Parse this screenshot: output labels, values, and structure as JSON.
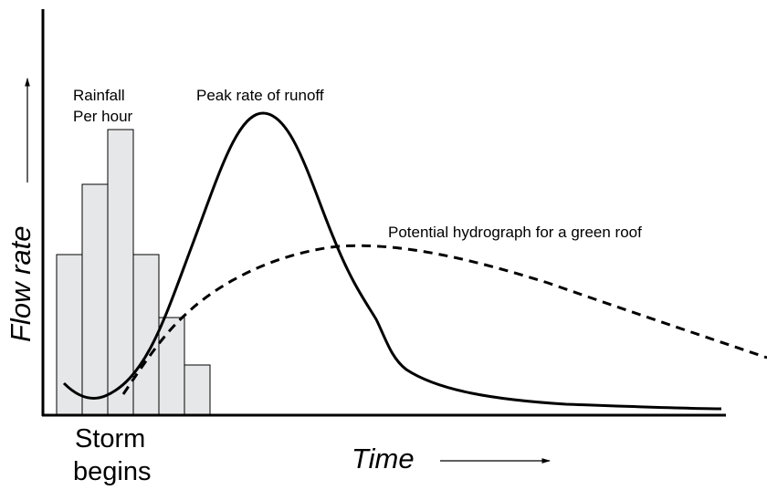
{
  "labels": {
    "rainfall": [
      "Rainfall",
      "Per hour"
    ],
    "peak": "Peak rate of runoff",
    "green_roof": "Potential hydrograph for a green roof",
    "y_axis": "Flow rate",
    "storm": [
      "Storm",
      "begins"
    ],
    "x_axis": "Time"
  }
}
